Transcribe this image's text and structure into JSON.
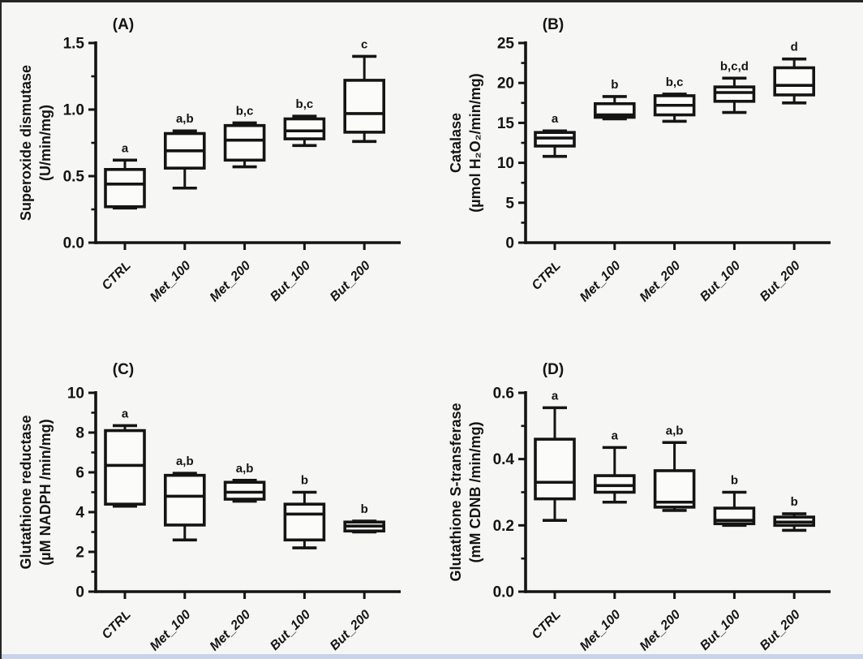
{
  "page": {
    "background": "#f6f6f4",
    "ink_color": "#141414",
    "box_fill": "#fbfbfa",
    "top_border_color": "#262626",
    "bottom_strip_color": "#c9d3ea"
  },
  "chart_data": [
    {
      "type": "box",
      "panel_label": "(A)",
      "ylabel_lines": [
        "Superoxide dismutase",
        "(U/min/mg)"
      ],
      "ylim": [
        0,
        1.5
      ],
      "yticks": [
        {
          "value": 0,
          "label": "0.0"
        },
        {
          "value": 0.5,
          "label": "0.5"
        },
        {
          "value": 1.0,
          "label": "1.0"
        },
        {
          "value": 1.5,
          "label": "1.5"
        }
      ],
      "minor_ticks": [
        0.25,
        0.75,
        1.25
      ],
      "categories": [
        "CTRL",
        "Met_100",
        "Met_200",
        "But_100",
        "But_200"
      ],
      "boxes": [
        {
          "category": "CTRL",
          "whisker_low": 0.26,
          "q1": 0.27,
          "median": 0.44,
          "q3": 0.55,
          "whisker_high": 0.62,
          "sig": "a"
        },
        {
          "category": "Met_100",
          "whisker_low": 0.41,
          "q1": 0.56,
          "median": 0.69,
          "q3": 0.82,
          "whisker_high": 0.84,
          "sig": "a,b"
        },
        {
          "category": "Met_200",
          "whisker_low": 0.57,
          "q1": 0.62,
          "median": 0.77,
          "q3": 0.88,
          "whisker_high": 0.9,
          "sig": "b,c"
        },
        {
          "category": "But_100",
          "whisker_low": 0.73,
          "q1": 0.78,
          "median": 0.84,
          "q3": 0.93,
          "whisker_high": 0.95,
          "sig": "b,c"
        },
        {
          "category": "But_200",
          "whisker_low": 0.76,
          "q1": 0.83,
          "median": 0.97,
          "q3": 1.22,
          "whisker_high": 1.4,
          "sig": "c"
        }
      ]
    },
    {
      "type": "box",
      "panel_label": "(B)",
      "ylabel_lines": [
        "Catalase",
        "(µmol H₂O₂/min/mg)"
      ],
      "ylim": [
        0,
        25
      ],
      "yticks": [
        {
          "value": 0,
          "label": "0"
        },
        {
          "value": 5,
          "label": "5"
        },
        {
          "value": 10,
          "label": "10"
        },
        {
          "value": 15,
          "label": "15"
        },
        {
          "value": 20,
          "label": "20"
        },
        {
          "value": 25,
          "label": "25"
        }
      ],
      "minor_ticks": [
        2.5,
        7.5,
        12.5,
        17.5,
        22.5
      ],
      "categories": [
        "CTRL",
        "Met_100",
        "Met_200",
        "But_100",
        "But_200"
      ],
      "boxes": [
        {
          "category": "CTRL",
          "whisker_low": 10.8,
          "q1": 12.1,
          "median": 13.1,
          "q3": 13.8,
          "whisker_high": 14.0,
          "sig": "a"
        },
        {
          "category": "Met_100",
          "whisker_low": 15.5,
          "q1": 15.7,
          "median": 16.0,
          "q3": 17.4,
          "whisker_high": 18.3,
          "sig": "b"
        },
        {
          "category": "Met_200",
          "whisker_low": 15.2,
          "q1": 16.0,
          "median": 17.2,
          "q3": 18.4,
          "whisker_high": 18.6,
          "sig": "b,c"
        },
        {
          "category": "But_100",
          "whisker_low": 16.3,
          "q1": 17.7,
          "median": 18.8,
          "q3": 19.5,
          "whisker_high": 20.6,
          "sig": "b,c,d"
        },
        {
          "category": "But_200",
          "whisker_low": 17.5,
          "q1": 18.5,
          "median": 19.7,
          "q3": 21.9,
          "whisker_high": 23.0,
          "sig": "d"
        }
      ]
    },
    {
      "type": "box",
      "panel_label": "(C)",
      "ylabel_lines": [
        "Glutathione reductase",
        "(µM NADPH /min/mg)"
      ],
      "ylim": [
        0,
        10
      ],
      "yticks": [
        {
          "value": 0,
          "label": "0"
        },
        {
          "value": 2,
          "label": "2"
        },
        {
          "value": 4,
          "label": "4"
        },
        {
          "value": 6,
          "label": "6"
        },
        {
          "value": 8,
          "label": "8"
        },
        {
          "value": 10,
          "label": "10"
        }
      ],
      "minor_ticks": [
        1,
        3,
        5,
        7,
        9
      ],
      "categories": [
        "CTRL",
        "Met_100",
        "Met_200",
        "But_100",
        "But_200"
      ],
      "boxes": [
        {
          "category": "CTRL",
          "whisker_low": 4.3,
          "q1": 4.4,
          "median": 6.35,
          "q3": 8.1,
          "whisker_high": 8.35,
          "sig": "a"
        },
        {
          "category": "Met_100",
          "whisker_low": 2.6,
          "q1": 3.35,
          "median": 4.8,
          "q3": 5.85,
          "whisker_high": 5.95,
          "sig": "a,b"
        },
        {
          "category": "Met_200",
          "whisker_low": 4.55,
          "q1": 4.65,
          "median": 5.0,
          "q3": 5.5,
          "whisker_high": 5.6,
          "sig": "a,b"
        },
        {
          "category": "But_100",
          "whisker_low": 2.2,
          "q1": 2.6,
          "median": 3.9,
          "q3": 4.4,
          "whisker_high": 5.0,
          "sig": "b"
        },
        {
          "category": "But_200",
          "whisker_low": 3.0,
          "q1": 3.05,
          "median": 3.3,
          "q3": 3.5,
          "whisker_high": 3.55,
          "sig": "b"
        }
      ]
    },
    {
      "type": "box",
      "panel_label": "(D)",
      "ylabel_lines": [
        "Glutathione S-transferase",
        "(mM CDNB /min/mg)"
      ],
      "ylim": [
        0,
        0.6
      ],
      "yticks": [
        {
          "value": 0,
          "label": "0.0"
        },
        {
          "value": 0.2,
          "label": "0.2"
        },
        {
          "value": 0.4,
          "label": "0.4"
        },
        {
          "value": 0.6,
          "label": "0.6"
        }
      ],
      "minor_ticks": [
        0.1,
        0.3,
        0.5
      ],
      "categories": [
        "CTRL",
        "Met_100",
        "Met_200",
        "But_100",
        "But_200"
      ],
      "boxes": [
        {
          "category": "CTRL",
          "whisker_low": 0.215,
          "q1": 0.28,
          "median": 0.33,
          "q3": 0.46,
          "whisker_high": 0.555,
          "sig": "a"
        },
        {
          "category": "Met_100",
          "whisker_low": 0.27,
          "q1": 0.3,
          "median": 0.32,
          "q3": 0.35,
          "whisker_high": 0.435,
          "sig": "a"
        },
        {
          "category": "Met_200",
          "whisker_low": 0.245,
          "q1": 0.255,
          "median": 0.27,
          "q3": 0.365,
          "whisker_high": 0.45,
          "sig": "a,b"
        },
        {
          "category": "But_100",
          "whisker_low": 0.2,
          "q1": 0.205,
          "median": 0.215,
          "q3": 0.252,
          "whisker_high": 0.3,
          "sig": "b"
        },
        {
          "category": "But_200",
          "whisker_low": 0.185,
          "q1": 0.2,
          "median": 0.21,
          "q3": 0.225,
          "whisker_high": 0.235,
          "sig": "b"
        }
      ]
    }
  ]
}
